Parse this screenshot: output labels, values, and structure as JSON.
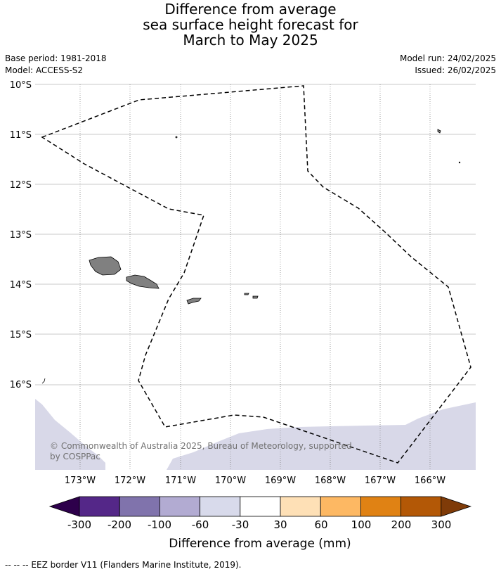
{
  "title": {
    "line1": "Difference from average",
    "line2": "sea surface height forecast for",
    "line3": "March to May 2025"
  },
  "meta": {
    "base_period": "Base period: 1981-2018",
    "model": "Model: ACCESS-S2",
    "model_run": "Model run: 24/02/2025",
    "issued": "Issued: 26/02/2025"
  },
  "map": {
    "lat_labels": [
      "10°S",
      "11°S",
      "12°S",
      "13°S",
      "14°S",
      "15°S",
      "16°S"
    ],
    "lon_labels": [
      "173°W",
      "172°W",
      "171°W",
      "170°W",
      "169°W",
      "168°W",
      "167°W",
      "166°W"
    ],
    "copyright_line1": "© Commonwealth of Australia 2025, Bureau of Meteorology, supported",
    "copyright_line2": "by COSPPac",
    "colors": {
      "land": "#808080",
      "anomaly_band": "#d8d8e8",
      "eez_border": "#000000"
    }
  },
  "colorbar": {
    "tick_labels": [
      "-300",
      "-200",
      "-100",
      "-60",
      "-30",
      "30",
      "60",
      "100",
      "200",
      "300"
    ],
    "label": "Difference from average (mm)",
    "bins": [
      {
        "color": "#2d004b"
      },
      {
        "color": "#542788"
      },
      {
        "color": "#8073ac"
      },
      {
        "color": "#b2abd2"
      },
      {
        "color": "#d8daeb"
      },
      {
        "color": "#ffffff"
      },
      {
        "color": "#fee0b6"
      },
      {
        "color": "#fdb863"
      },
      {
        "color": "#e08214"
      },
      {
        "color": "#b35806"
      },
      {
        "color": "#7f3b08"
      }
    ]
  },
  "footnote": "--  --  -- EEZ border V11 (Flanders Marine Institute, 2019)."
}
